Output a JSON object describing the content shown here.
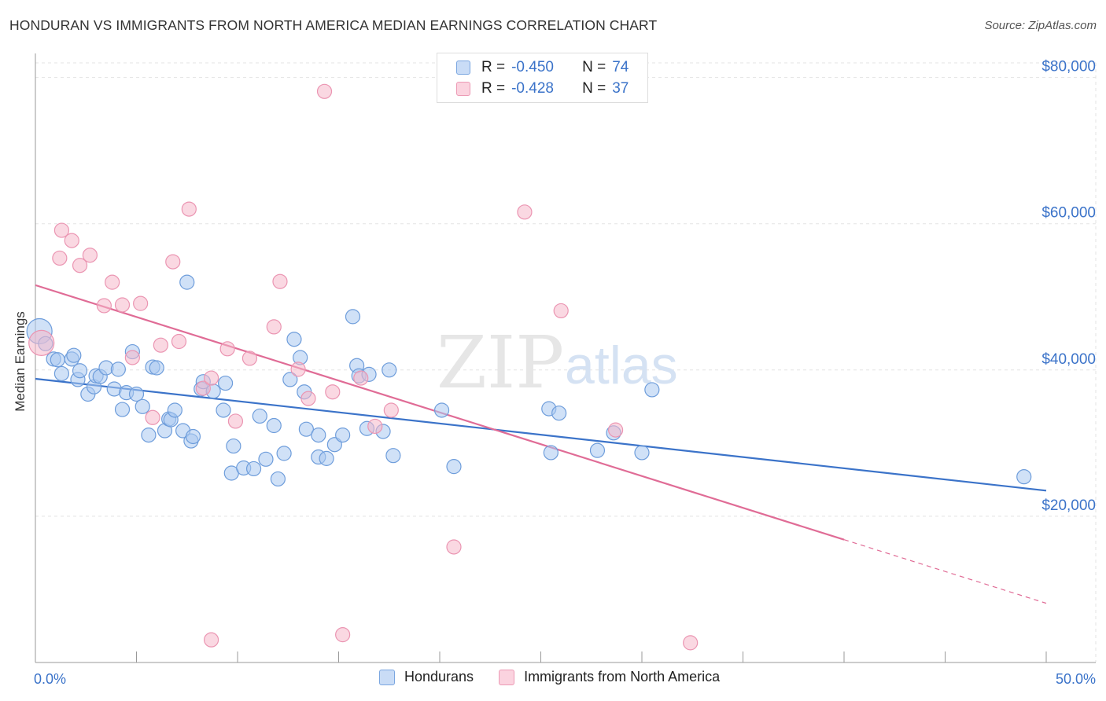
{
  "header": {
    "title": "HONDURAN VS IMMIGRANTS FROM NORTH AMERICA MEDIAN EARNINGS CORRELATION CHART",
    "source": "Source: ZipAtlas.com"
  },
  "legend": {
    "rows": [
      {
        "r_label": "R =",
        "r_value": "-0.450",
        "n_label": "N =",
        "n_value": "74",
        "color": "#aac8f0"
      },
      {
        "r_label": "R =",
        "r_value": "-0.428",
        "n_label": "N =",
        "n_value": "37",
        "color": "#f5b8ca"
      }
    ]
  },
  "bottom_legend": {
    "items": [
      {
        "label": "Hondurans",
        "color": "#aac8f0"
      },
      {
        "label": "Immigrants from North America",
        "color": "#f5b8ca"
      }
    ]
  },
  "watermark": {
    "zip": "ZIP",
    "atlas": "atlas"
  },
  "chart_data": {
    "type": "scatter",
    "title": "HONDURAN VS IMMIGRANTS FROM NORTH AMERICA MEDIAN EARNINGS CORRELATION CHART",
    "ylabel": "Median Earnings",
    "xlabel": "",
    "xlim": [
      0,
      50
    ],
    "ylim": [
      0,
      82000
    ],
    "x_tick_labels": [
      "0.0%",
      "50.0%"
    ],
    "y_ticks": [
      20000,
      40000,
      60000,
      80000
    ],
    "y_tick_labels": [
      "$20,000",
      "$40,000",
      "$60,000",
      "$80,000"
    ],
    "grid": true,
    "legend_position": "top-center",
    "series": [
      {
        "name": "Hondurans",
        "color": "#3b73c9",
        "fill": "#aac8f0",
        "trend": {
          "x0": 0,
          "y0": 38800,
          "x1": 50,
          "y1": 23500
        },
        "points": [
          [
            0.2,
            45300
          ],
          [
            0.5,
            43600
          ],
          [
            0.9,
            41500
          ],
          [
            1.1,
            41400
          ],
          [
            1.3,
            39500
          ],
          [
            1.8,
            41500
          ],
          [
            1.9,
            42000
          ],
          [
            2.1,
            38700
          ],
          [
            2.2,
            39900
          ],
          [
            2.6,
            36700
          ],
          [
            2.9,
            37700
          ],
          [
            3.0,
            39200
          ],
          [
            3.2,
            39100
          ],
          [
            3.5,
            40300
          ],
          [
            3.9,
            37400
          ],
          [
            4.1,
            40100
          ],
          [
            4.3,
            34600
          ],
          [
            4.5,
            36900
          ],
          [
            4.8,
            42500
          ],
          [
            5.0,
            36700
          ],
          [
            5.3,
            35000
          ],
          [
            5.6,
            31100
          ],
          [
            5.8,
            40400
          ],
          [
            6.0,
            40300
          ],
          [
            6.4,
            31700
          ],
          [
            6.6,
            33300
          ],
          [
            6.7,
            33200
          ],
          [
            6.9,
            34500
          ],
          [
            7.3,
            31700
          ],
          [
            7.7,
            30300
          ],
          [
            7.8,
            30900
          ],
          [
            7.5,
            52000
          ],
          [
            8.2,
            37400
          ],
          [
            8.3,
            38400
          ],
          [
            8.8,
            37100
          ],
          [
            9.4,
            38200
          ],
          [
            9.3,
            34500
          ],
          [
            9.7,
            25900
          ],
          [
            9.8,
            29600
          ],
          [
            10.3,
            26600
          ],
          [
            10.8,
            26500
          ],
          [
            11.1,
            33700
          ],
          [
            11.4,
            27800
          ],
          [
            11.8,
            32400
          ],
          [
            12.0,
            25100
          ],
          [
            12.3,
            28600
          ],
          [
            12.6,
            38700
          ],
          [
            12.8,
            44200
          ],
          [
            13.1,
            41700
          ],
          [
            13.3,
            37000
          ],
          [
            13.4,
            31900
          ],
          [
            14.0,
            31100
          ],
          [
            14.0,
            28100
          ],
          [
            14.4,
            27900
          ],
          [
            14.8,
            29800
          ],
          [
            15.2,
            31100
          ],
          [
            15.7,
            47300
          ],
          [
            15.9,
            40600
          ],
          [
            16.0,
            39200
          ],
          [
            16.4,
            32000
          ],
          [
            16.5,
            39400
          ],
          [
            17.2,
            31600
          ],
          [
            17.5,
            40000
          ],
          [
            17.7,
            28300
          ],
          [
            20.1,
            34500
          ],
          [
            20.7,
            26800
          ],
          [
            25.4,
            34700
          ],
          [
            25.5,
            28700
          ],
          [
            25.9,
            34100
          ],
          [
            27.8,
            29000
          ],
          [
            28.6,
            31400
          ],
          [
            30.0,
            28700
          ],
          [
            30.5,
            37300
          ],
          [
            48.9,
            25400
          ]
        ]
      },
      {
        "name": "Immigrants from North America",
        "color": "#e06c96",
        "fill": "#f5b8ca",
        "trend": {
          "x0": 0,
          "y0": 51600,
          "x1": 40,
          "y1": 16800,
          "x_dash_end": 50,
          "y_dash_end": 8100
        },
        "points": [
          [
            0.3,
            43700
          ],
          [
            1.2,
            55300
          ],
          [
            1.3,
            59100
          ],
          [
            1.8,
            57700
          ],
          [
            2.2,
            54300
          ],
          [
            2.7,
            55700
          ],
          [
            3.4,
            48800
          ],
          [
            3.8,
            52000
          ],
          [
            4.3,
            48900
          ],
          [
            4.8,
            41700
          ],
          [
            5.2,
            49100
          ],
          [
            5.8,
            33500
          ],
          [
            6.2,
            43400
          ],
          [
            6.8,
            54800
          ],
          [
            7.1,
            43900
          ],
          [
            7.6,
            62000
          ],
          [
            8.3,
            37500
          ],
          [
            8.7,
            38900
          ],
          [
            8.7,
            3100
          ],
          [
            9.5,
            42900
          ],
          [
            9.9,
            33000
          ],
          [
            10.6,
            41600
          ],
          [
            11.8,
            45900
          ],
          [
            12.1,
            52100
          ],
          [
            13.0,
            40100
          ],
          [
            13.5,
            36100
          ],
          [
            14.3,
            78100
          ],
          [
            14.7,
            37000
          ],
          [
            15.2,
            3800
          ],
          [
            16.1,
            38900
          ],
          [
            16.8,
            32300
          ],
          [
            17.6,
            34500
          ],
          [
            20.7,
            15800
          ],
          [
            24.2,
            61600
          ],
          [
            26.0,
            48100
          ],
          [
            28.7,
            31800
          ],
          [
            32.4,
            2700
          ]
        ]
      }
    ]
  }
}
